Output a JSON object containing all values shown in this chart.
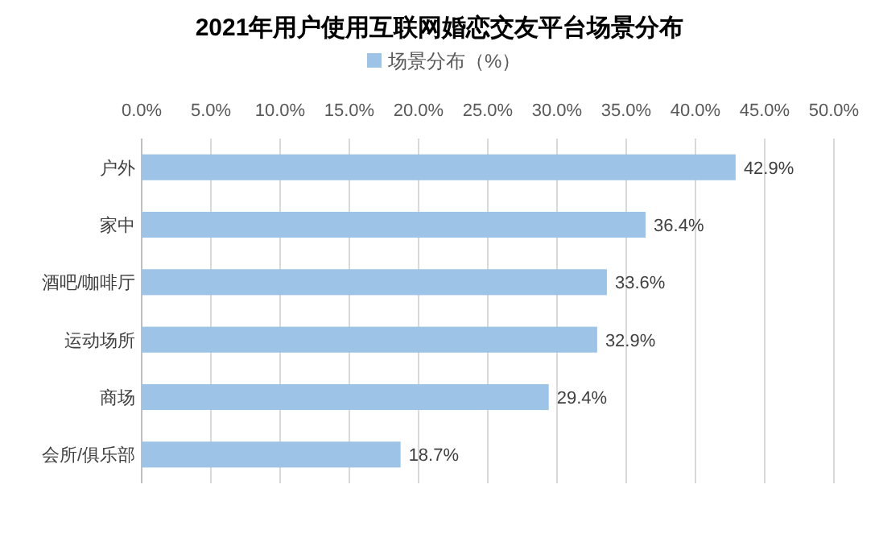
{
  "chart_data": {
    "type": "bar",
    "orientation": "horizontal",
    "title": "2021年用户使用互联网婚恋交友平台场景分布",
    "categories": [
      "户外",
      "家中",
      "酒吧/咖啡厅",
      "运动场所",
      "商场",
      "会所/俱乐部"
    ],
    "series": [
      {
        "name": "场景分布（%）",
        "color": "#9dc3e6",
        "values": [
          42.9,
          36.4,
          33.6,
          32.9,
          29.4,
          18.7
        ],
        "value_labels": [
          "42.9%",
          "36.4%",
          "33.6%",
          "32.9%",
          "29.4%",
          "18.7%"
        ]
      }
    ],
    "xlim": [
      0,
      50
    ],
    "xticks": [
      {
        "value": 0,
        "label": "0.0%"
      },
      {
        "value": 5,
        "label": "5.0%"
      },
      {
        "value": 10,
        "label": "10.0%"
      },
      {
        "value": 15,
        "label": "15.0%"
      },
      {
        "value": 20,
        "label": "20.0%"
      },
      {
        "value": 25,
        "label": "25.0%"
      },
      {
        "value": 30,
        "label": "30.0%"
      },
      {
        "value": 35,
        "label": "35.0%"
      },
      {
        "value": 40,
        "label": "40.0%"
      },
      {
        "value": 45,
        "label": "45.0%"
      },
      {
        "value": 50,
        "label": "50.0%"
      }
    ],
    "grid": "x",
    "legend": "top"
  }
}
